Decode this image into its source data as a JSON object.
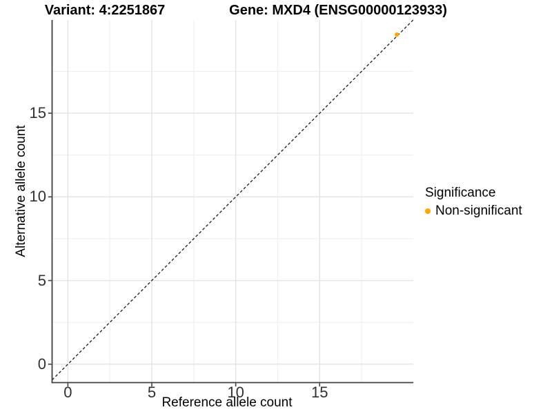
{
  "titles": {
    "variant": "Variant: 4:2251867",
    "gene": "Gene: MXD4 (ENSG00000123933)"
  },
  "axes": {
    "x_label": "Reference allele count",
    "y_label": "Alternative allele count"
  },
  "legend": {
    "title": "Significance",
    "items": [
      {
        "label": "Non-significant",
        "color": "#FFA500"
      }
    ]
  },
  "colors": {
    "point_orange": "#FFA500",
    "axis_line": "#3f3f3f",
    "tick_text": "#303030",
    "grid_major": "#e3e3e3",
    "grid_minor": "#efefef",
    "dashed_line": "#1a1a1a",
    "background": "#ffffff"
  },
  "chart_data": {
    "type": "scatter",
    "title": "Variant: 4:2251867    Gene: MXD4 (ENSG00000123933)",
    "xlabel": "Reference allele count",
    "ylabel": "Alternative allele count",
    "x_ticks": [
      0,
      5,
      10,
      15
    ],
    "y_ticks": [
      0,
      5,
      10,
      15
    ],
    "x_minor_ticks": [
      2.5,
      7.5,
      12.5,
      17.5
    ],
    "y_minor_ticks": [
      2.5,
      7.5,
      12.5,
      17.5
    ],
    "xlim": [
      -0.94,
      20.58
    ],
    "ylim": [
      -1.1,
      20.57
    ],
    "grid": true,
    "legend_position": "right",
    "reference_line": {
      "type": "identity",
      "style": "dashed"
    },
    "series": [
      {
        "name": "Non-significant",
        "color": "#FFA500",
        "points": [
          {
            "x": 19.6,
            "y": 19.7
          }
        ]
      }
    ]
  }
}
